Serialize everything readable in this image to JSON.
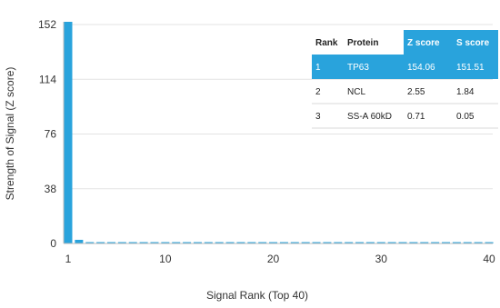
{
  "chart_data": {
    "type": "bar",
    "xlabel": "Signal Rank (Top 40)",
    "ylabel": "Strength of Signal (Z score)",
    "xlim": [
      1,
      40
    ],
    "ylim": [
      0,
      152
    ],
    "x_ticks": [
      1,
      10,
      20,
      30,
      40
    ],
    "y_ticks": [
      0,
      38,
      76,
      114,
      152
    ],
    "grid": "horizontal",
    "color": "#29a3dc",
    "x": [
      1,
      2,
      3,
      4,
      5,
      6,
      7,
      8,
      9,
      10,
      11,
      12,
      13,
      14,
      15,
      16,
      17,
      18,
      19,
      20,
      21,
      22,
      23,
      24,
      25,
      26,
      27,
      28,
      29,
      30,
      31,
      32,
      33,
      34,
      35,
      36,
      37,
      38,
      39,
      40
    ],
    "values": [
      154.06,
      2.55,
      0.71,
      0.6,
      0.55,
      0.5,
      0.5,
      0.45,
      0.45,
      0.4,
      0.4,
      0.4,
      0.35,
      0.35,
      0.35,
      0.3,
      0.3,
      0.3,
      0.3,
      0.3,
      0.25,
      0.25,
      0.25,
      0.25,
      0.25,
      0.2,
      0.2,
      0.2,
      0.2,
      0.2,
      0.2,
      0.15,
      0.15,
      0.15,
      0.15,
      0.15,
      0.15,
      0.1,
      0.1,
      0.1
    ],
    "table": {
      "columns": [
        "Rank",
        "Protein",
        "Z score",
        "S score"
      ],
      "highlight_columns": [
        2,
        3
      ],
      "highlight_row": 0,
      "highlight_color": "#29a3dc",
      "rows": [
        [
          "1",
          "TP63",
          "154.06",
          "151.51"
        ],
        [
          "2",
          "NCL",
          "2.55",
          "1.84"
        ],
        [
          "3",
          "SS-A 60kD",
          "0.71",
          "0.05"
        ]
      ]
    }
  }
}
